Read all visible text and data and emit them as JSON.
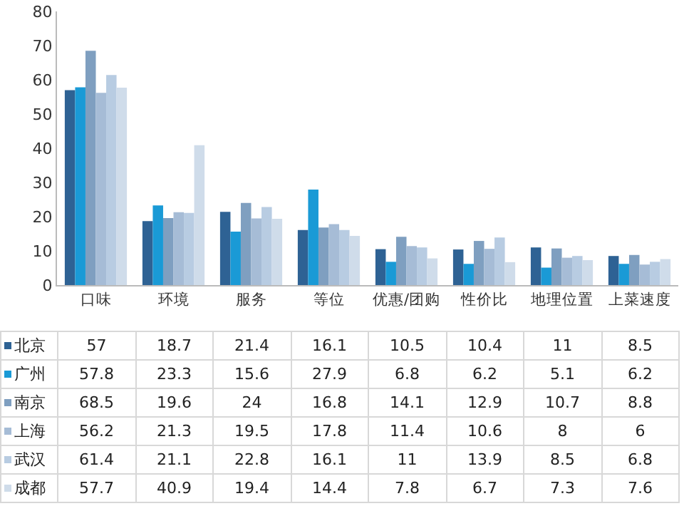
{
  "chart_data": {
    "type": "bar",
    "categories": [
      "口味",
      "环境",
      "服务",
      "等位",
      "优惠/团购",
      "性价比",
      "地理位置",
      "上菜速度"
    ],
    "series": [
      {
        "name": "北京",
        "color": "#2e6294",
        "values": [
          57,
          18.7,
          21.4,
          16.1,
          10.5,
          10.4,
          11,
          8.5
        ]
      },
      {
        "name": "广州",
        "color": "#1a9ad6",
        "values": [
          57.8,
          23.3,
          15.6,
          27.9,
          6.8,
          6.2,
          5.1,
          6.2
        ]
      },
      {
        "name": "南京",
        "color": "#7f9fc0",
        "values": [
          68.5,
          19.6,
          24,
          16.8,
          14.1,
          12.9,
          10.7,
          8.8
        ]
      },
      {
        "name": "上海",
        "color": "#a6bcd6",
        "values": [
          56.2,
          21.3,
          19.5,
          17.8,
          11.4,
          10.6,
          8,
          6
        ]
      },
      {
        "name": "武汉",
        "color": "#b8cce2",
        "values": [
          61.4,
          21.1,
          22.8,
          16.1,
          11,
          13.9,
          8.5,
          6.8
        ]
      },
      {
        "name": "成都",
        "color": "#cfdcea",
        "values": [
          57.7,
          40.9,
          19.4,
          14.4,
          7.8,
          6.7,
          7.3,
          7.6
        ]
      }
    ],
    "ylim": [
      0,
      80
    ],
    "yticks": [
      0,
      10,
      20,
      30,
      40,
      50,
      60,
      70,
      80
    ],
    "data_labels": true,
    "legend": "bottom left"
  }
}
